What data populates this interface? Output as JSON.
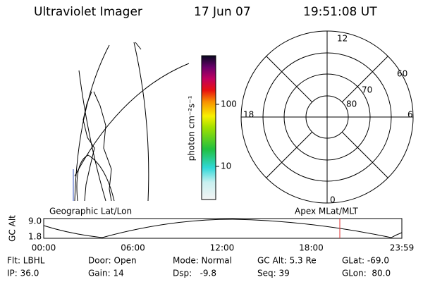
{
  "header": {
    "title": "Ultraviolet Imager",
    "date": "17 Jun 07",
    "time": "19:51:08 UT"
  },
  "colorbar": {
    "label": "photon cm⁻²s⁻¹",
    "ticks": [
      "100",
      "10"
    ]
  },
  "polar": {
    "labels": [
      "12",
      "18",
      "6",
      "0",
      "60",
      "70",
      "80"
    ]
  },
  "captions": {
    "left": "Geographic Lat/Lon",
    "right": "Apex MLat/MLT"
  },
  "altitude": {
    "ylabel": "GC Alt",
    "yticks": [
      "9.0",
      "1.8"
    ],
    "xticks": [
      "00:00",
      "06:00",
      "12:00",
      "18:00",
      "23:59"
    ]
  },
  "status": {
    "rows": [
      [
        "Flt: LBHL",
        "Door: Open",
        "Mode: Normal",
        "GC Alt: 5.3 Re",
        "GLat: -69.0"
      ],
      [
        "IP: 36.0",
        "Gain: 14",
        "Dsp:   -9.8",
        "Seq: 39",
        "GLon:  80.0"
      ]
    ]
  }
}
